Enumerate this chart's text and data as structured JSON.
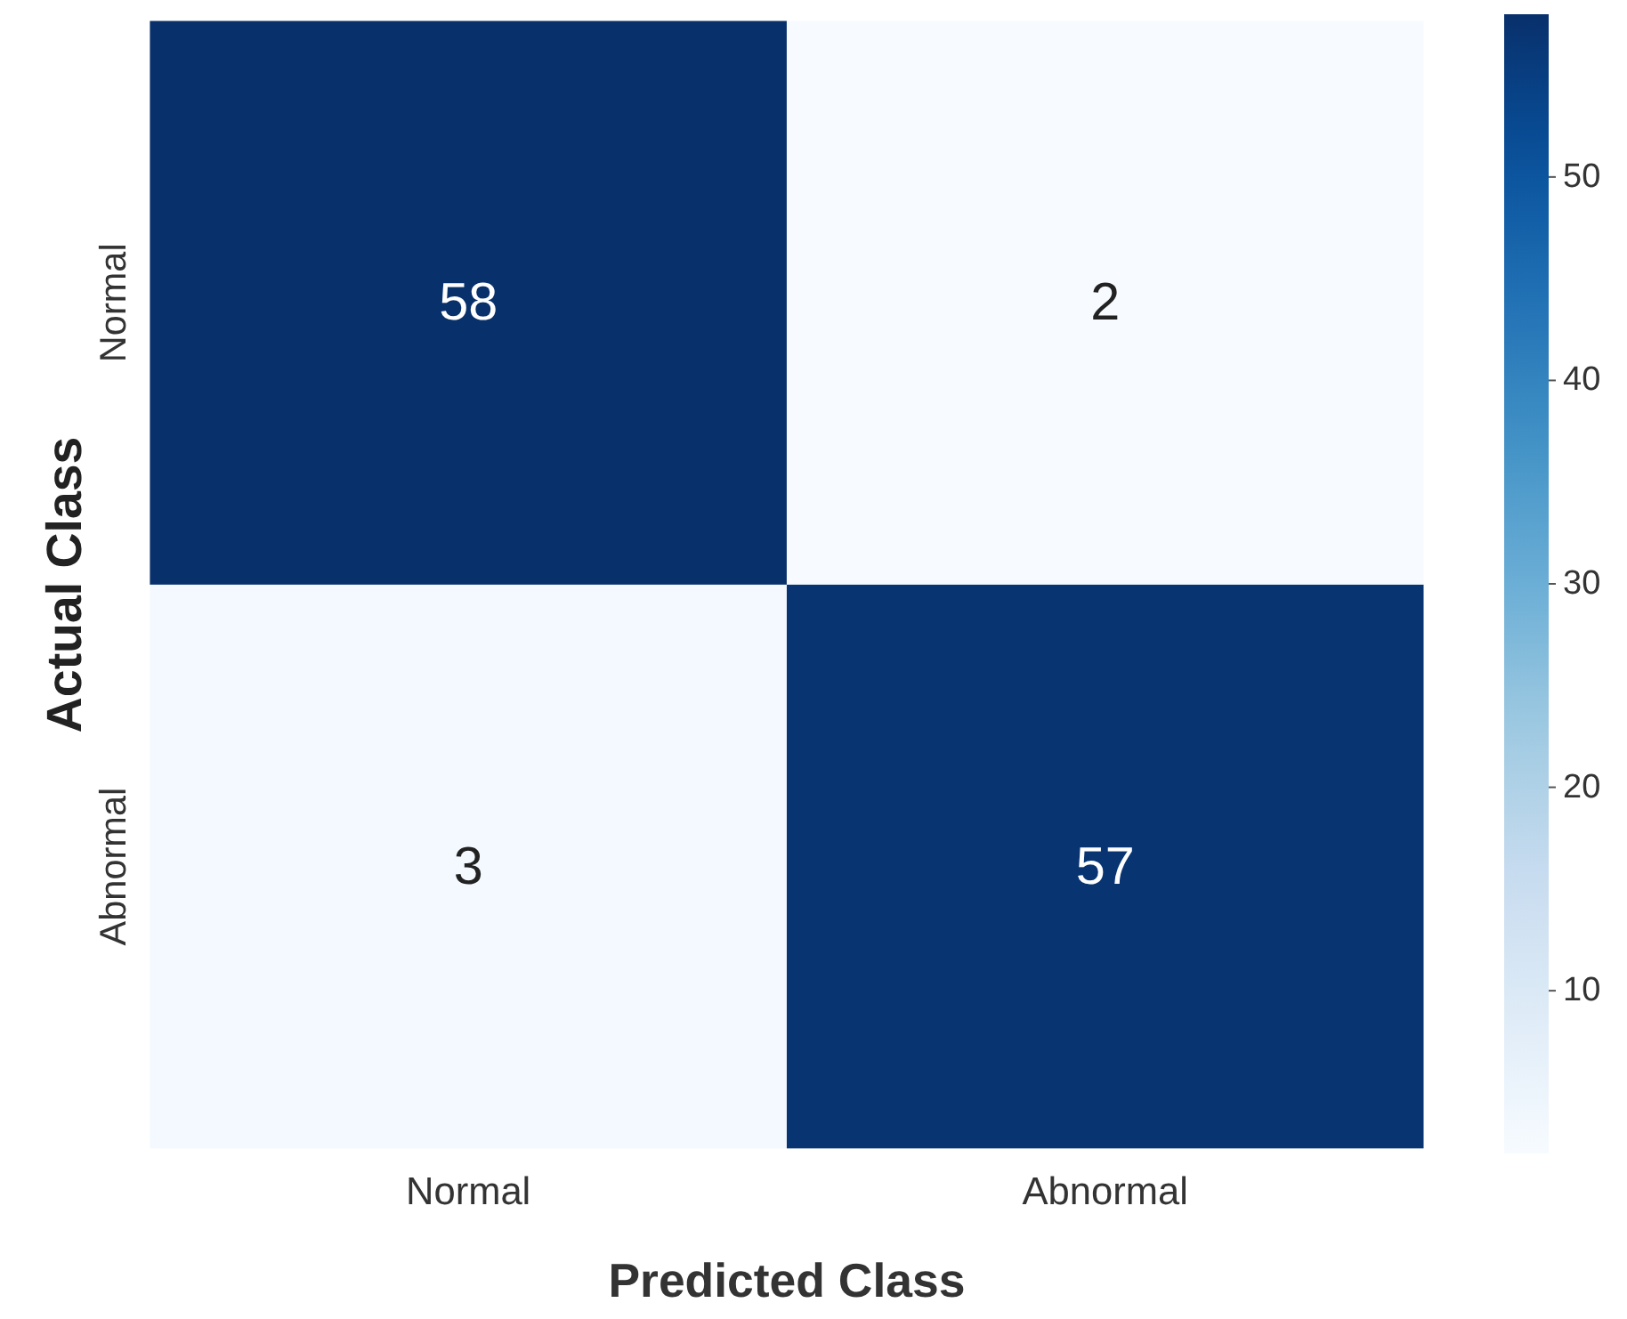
{
  "chart_data": {
    "type": "heatmap",
    "xlabel": "Predicted Class",
    "ylabel": "Actual Class",
    "categories": [
      "Normal",
      "Abnormal"
    ],
    "y_categories": [
      "Normal",
      "Abnormal"
    ],
    "cells": [
      [
        58,
        2
      ],
      [
        3,
        57
      ]
    ],
    "clim": [
      2,
      58
    ],
    "cticks": [
      10,
      20,
      30,
      40,
      50
    ],
    "data_labels": true
  }
}
